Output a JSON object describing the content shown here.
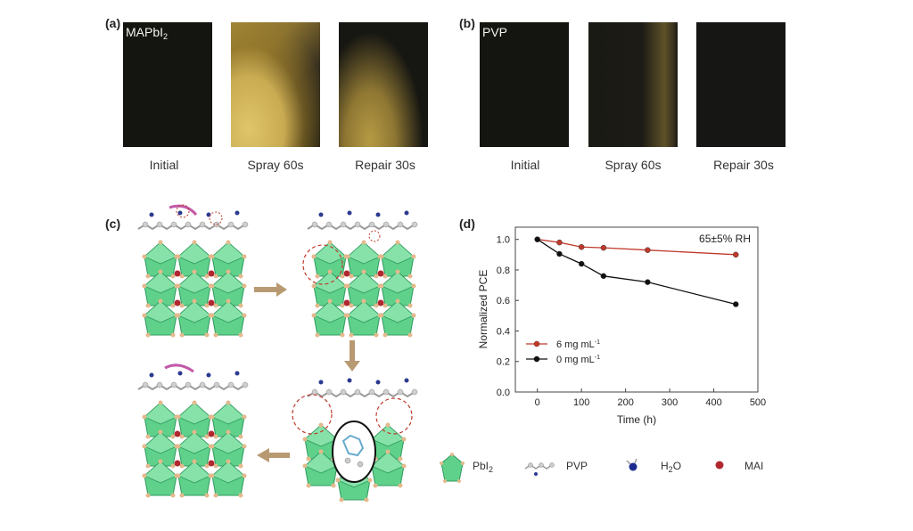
{
  "panel_a": {
    "label": "(a)",
    "material": "MAPbI",
    "material_sub": "2",
    "captions": [
      "Initial",
      "Spray 60s",
      "Repair 30s"
    ]
  },
  "panel_b": {
    "label": "(b)",
    "material": "PVP",
    "captions": [
      "Initial",
      "Spray 60s",
      "Repair 30s"
    ]
  },
  "panel_c": {
    "label": "(c)",
    "legend": {
      "pbi2": "PbI",
      "pbi2_sub": "2",
      "pvp": "PVP",
      "h2o_prefix": "H",
      "h2o_sub": "2",
      "h2o_suffix": "O",
      "mai": "MAI"
    },
    "colors": {
      "octahedron": "#5fd18b",
      "octahedron_edge": "#2f9a5e",
      "corner": "#e3b98d",
      "mai": "#b0282e",
      "arrow": "#b89a72"
    }
  },
  "panel_d": {
    "label": "(d)",
    "chart_data": {
      "type": "line",
      "annotation": "65±5% RH",
      "xlabel": "Time (h)",
      "ylabel": "Normalized PCE",
      "xlim": [
        -50,
        500
      ],
      "ylim": [
        0.0,
        1.08
      ],
      "xticks": [
        "0",
        "100",
        "200",
        "300",
        "400",
        "500"
      ],
      "yticks": [
        "0.0",
        "0.2",
        "0.4",
        "0.6",
        "0.8",
        "1.0"
      ],
      "legend_position": "lower-left",
      "series": [
        {
          "name": "6 mg mL",
          "unit_sup": "-1",
          "color": "#c0392b",
          "x": [
            0,
            50,
            100,
            150,
            250,
            450
          ],
          "y": [
            1.0,
            0.98,
            0.95,
            0.945,
            0.93,
            0.9
          ]
        },
        {
          "name": "0 mg mL",
          "unit_sup": "-1",
          "color": "#111111",
          "x": [
            0,
            50,
            100,
            150,
            250,
            450
          ],
          "y": [
            1.0,
            0.905,
            0.84,
            0.76,
            0.72,
            0.575
          ]
        }
      ]
    }
  }
}
